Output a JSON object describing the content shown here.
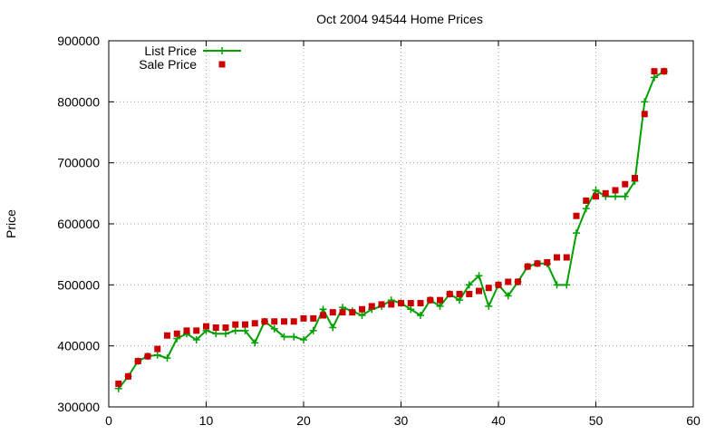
{
  "chart_data": {
    "type": "line",
    "title": "Oct 2004 94544 Home Prices",
    "xlabel": "",
    "ylabel": "Price",
    "xlim": [
      0,
      60
    ],
    "ylim": [
      300000,
      900000
    ],
    "xticks": [
      0,
      10,
      20,
      30,
      40,
      50,
      60
    ],
    "yticks": [
      300000,
      400000,
      500000,
      600000,
      700000,
      800000,
      900000
    ],
    "xtick_labels": [
      "0",
      "10",
      "20",
      "30",
      "40",
      "50",
      "60"
    ],
    "ytick_labels": [
      "300000",
      "400000",
      "500000",
      "600000",
      "700000",
      "800000",
      "900000"
    ],
    "grid": true,
    "legend_position": "top-left",
    "x": [
      1,
      2,
      3,
      4,
      5,
      6,
      7,
      8,
      9,
      10,
      11,
      12,
      13,
      14,
      15,
      16,
      17,
      18,
      19,
      20,
      21,
      22,
      23,
      24,
      25,
      26,
      27,
      28,
      29,
      30,
      31,
      32,
      33,
      34,
      35,
      36,
      37,
      38,
      39,
      40,
      41,
      42,
      43,
      44,
      45,
      46,
      47,
      48,
      49,
      50,
      51,
      52,
      53,
      54,
      55,
      56,
      57
    ],
    "series": [
      {
        "name": "List Price",
        "style": "line-plus",
        "color": "#00a000",
        "values": [
          330000,
          350000,
          375000,
          383000,
          385000,
          380000,
          412000,
          420000,
          410000,
          425000,
          420000,
          420000,
          425000,
          425000,
          405000,
          440000,
          428000,
          415000,
          415000,
          410000,
          425000,
          460000,
          430000,
          463000,
          457000,
          450000,
          460000,
          465000,
          475000,
          470000,
          460000,
          450000,
          475000,
          465000,
          485000,
          475000,
          500000,
          515000,
          465000,
          500000,
          482000,
          505000,
          530000,
          535000,
          535000,
          500000,
          500000,
          585000,
          625000,
          655000,
          645000,
          645000,
          645000,
          670000,
          800000,
          840000,
          850000
        ]
      },
      {
        "name": "Sale Price",
        "style": "square",
        "color": "#cc0000",
        "values": [
          338000,
          350000,
          375000,
          383000,
          395000,
          417000,
          420000,
          425000,
          425000,
          432000,
          430000,
          430000,
          435000,
          435000,
          437000,
          440000,
          440000,
          440000,
          440000,
          445000,
          445000,
          450000,
          455000,
          455000,
          455000,
          460000,
          465000,
          468000,
          468000,
          470000,
          470000,
          470000,
          475000,
          475000,
          485000,
          485000,
          485000,
          490000,
          495000,
          500000,
          505000,
          505000,
          530000,
          535000,
          537000,
          545000,
          545000,
          613000,
          638000,
          645000,
          650000,
          655000,
          665000,
          675000,
          780000,
          850000,
          850000
        ]
      }
    ]
  }
}
